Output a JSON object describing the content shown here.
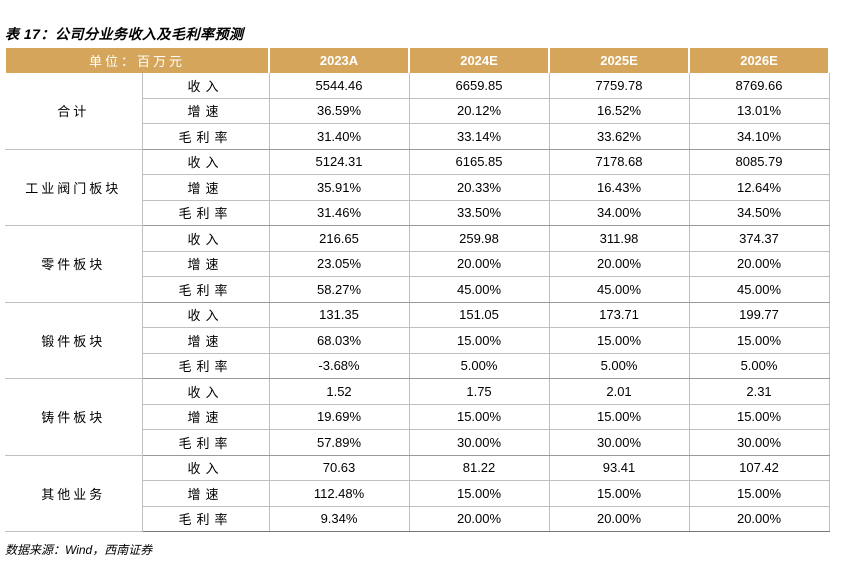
{
  "title": "表 17：公司分业务收入及毛利率预测",
  "header": {
    "unit": "单位：百万元",
    "years": [
      "2023A",
      "2024E",
      "2025E",
      "2026E"
    ]
  },
  "segments": [
    {
      "name": "合计",
      "rows": [
        {
          "metric": "收入",
          "values": [
            "5544.46",
            "6659.85",
            "7759.78",
            "8769.66"
          ]
        },
        {
          "metric": "增速",
          "values": [
            "36.59%",
            "20.12%",
            "16.52%",
            "13.01%"
          ]
        },
        {
          "metric": "毛利率",
          "values": [
            "31.40%",
            "33.14%",
            "33.62%",
            "34.10%"
          ]
        }
      ]
    },
    {
      "name": "工业阀门板块",
      "rows": [
        {
          "metric": "收入",
          "values": [
            "5124.31",
            "6165.85",
            "7178.68",
            "8085.79"
          ]
        },
        {
          "metric": "增速",
          "values": [
            "35.91%",
            "20.33%",
            "16.43%",
            "12.64%"
          ]
        },
        {
          "metric": "毛利率",
          "values": [
            "31.46%",
            "33.50%",
            "34.00%",
            "34.50%"
          ]
        }
      ]
    },
    {
      "name": "零件板块",
      "rows": [
        {
          "metric": "收入",
          "values": [
            "216.65",
            "259.98",
            "311.98",
            "374.37"
          ]
        },
        {
          "metric": "增速",
          "values": [
            "23.05%",
            "20.00%",
            "20.00%",
            "20.00%"
          ]
        },
        {
          "metric": "毛利率",
          "values": [
            "58.27%",
            "45.00%",
            "45.00%",
            "45.00%"
          ]
        }
      ]
    },
    {
      "name": "锻件板块",
      "rows": [
        {
          "metric": "收入",
          "values": [
            "131.35",
            "151.05",
            "173.71",
            "199.77"
          ]
        },
        {
          "metric": "增速",
          "values": [
            "68.03%",
            "15.00%",
            "15.00%",
            "15.00%"
          ]
        },
        {
          "metric": "毛利率",
          "values": [
            "-3.68%",
            "5.00%",
            "5.00%",
            "5.00%"
          ]
        }
      ]
    },
    {
      "name": "铸件板块",
      "rows": [
        {
          "metric": "收入",
          "values": [
            "1.52",
            "1.75",
            "2.01",
            "2.31"
          ]
        },
        {
          "metric": "增速",
          "values": [
            "19.69%",
            "15.00%",
            "15.00%",
            "15.00%"
          ]
        },
        {
          "metric": "毛利率",
          "values": [
            "57.89%",
            "30.00%",
            "30.00%",
            "30.00%"
          ]
        }
      ]
    },
    {
      "name": "其他业务",
      "rows": [
        {
          "metric": "收入",
          "values": [
            "70.63",
            "81.22",
            "93.41",
            "107.42"
          ]
        },
        {
          "metric": "增速",
          "values": [
            "112.48%",
            "15.00%",
            "15.00%",
            "15.00%"
          ]
        },
        {
          "metric": "毛利率",
          "values": [
            "9.34%",
            "20.00%",
            "20.00%",
            "20.00%"
          ]
        }
      ]
    }
  ],
  "source": "数据来源：Wind，西南证券"
}
